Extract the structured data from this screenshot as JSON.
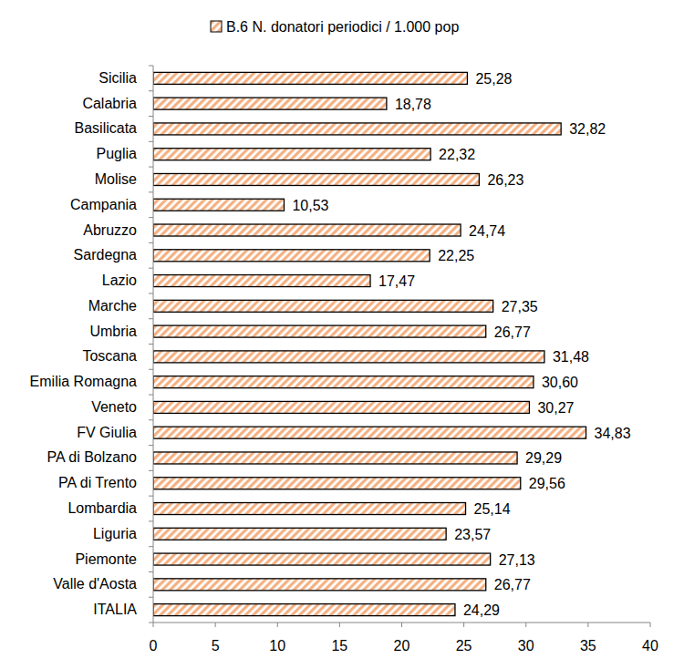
{
  "chart_data": {
    "type": "bar",
    "orientation": "horizontal",
    "categories": [
      "Sicilia",
      "Calabria",
      "Basilicata",
      "Puglia",
      "Molise",
      "Campania",
      "Abruzzo",
      "Sardegna",
      "Lazio",
      "Marche",
      "Umbria",
      "Toscana",
      "Emilia Romagna",
      "Veneto",
      "FV Giulia",
      "PA di Bolzano",
      "PA di Trento",
      "Lombardia",
      "Liguria",
      "Piemonte",
      "Valle d'Aosta",
      "ITALIA"
    ],
    "series": [
      {
        "name": "B.6 N. donatori periodici / 1.000 pop",
        "color": "#f4b183",
        "values": [
          25.28,
          18.78,
          32.82,
          22.32,
          26.23,
          10.53,
          24.74,
          22.25,
          17.47,
          27.35,
          26.77,
          31.48,
          30.6,
          30.27,
          34.83,
          29.29,
          29.56,
          25.14,
          23.57,
          27.13,
          26.77,
          24.29
        ],
        "value_labels": [
          "25,28",
          "18,78",
          "32,82",
          "22,32",
          "26,23",
          "10,53",
          "24,74",
          "22,25",
          "17,47",
          "27,35",
          "26,77",
          "31,48",
          "30,60",
          "30,27",
          "34,83",
          "29,29",
          "29,56",
          "25,14",
          "23,57",
          "27,13",
          "26,77",
          "24,29"
        ]
      }
    ],
    "xlim": [
      0,
      40
    ],
    "xticks": [
      0,
      5,
      10,
      15,
      20,
      25,
      30,
      35,
      40
    ],
    "grid": false,
    "data_labels": true,
    "legend": "top"
  }
}
